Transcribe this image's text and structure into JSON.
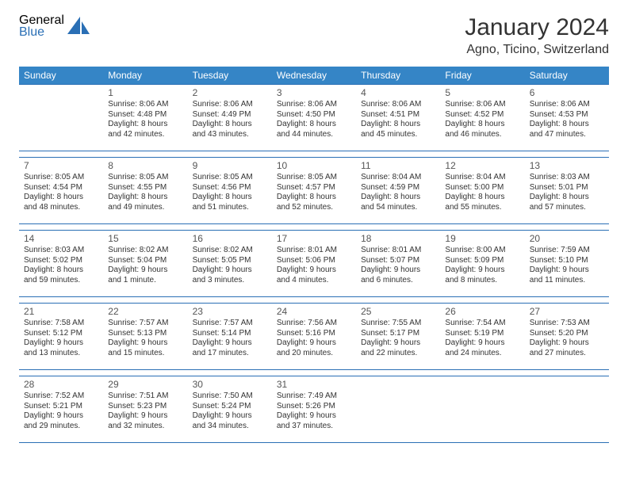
{
  "brand": {
    "top": "General",
    "bottom": "Blue"
  },
  "title": "January 2024",
  "location": "Agno, Ticino, Switzerland",
  "colors": {
    "header_bg": "#3585c6",
    "header_fg": "#ffffff",
    "rule": "#2a6fb5",
    "text": "#333333",
    "logo_gray": "#5a5a5a",
    "logo_blue": "#2a6fb5",
    "page_bg": "#ffffff"
  },
  "day_headers": [
    "Sunday",
    "Monday",
    "Tuesday",
    "Wednesday",
    "Thursday",
    "Friday",
    "Saturday"
  ],
  "weeks": [
    [
      null,
      {
        "n": "1",
        "sunrise": "Sunrise: 8:06 AM",
        "sunset": "Sunset: 4:48 PM",
        "day1": "Daylight: 8 hours",
        "day2": "and 42 minutes."
      },
      {
        "n": "2",
        "sunrise": "Sunrise: 8:06 AM",
        "sunset": "Sunset: 4:49 PM",
        "day1": "Daylight: 8 hours",
        "day2": "and 43 minutes."
      },
      {
        "n": "3",
        "sunrise": "Sunrise: 8:06 AM",
        "sunset": "Sunset: 4:50 PM",
        "day1": "Daylight: 8 hours",
        "day2": "and 44 minutes."
      },
      {
        "n": "4",
        "sunrise": "Sunrise: 8:06 AM",
        "sunset": "Sunset: 4:51 PM",
        "day1": "Daylight: 8 hours",
        "day2": "and 45 minutes."
      },
      {
        "n": "5",
        "sunrise": "Sunrise: 8:06 AM",
        "sunset": "Sunset: 4:52 PM",
        "day1": "Daylight: 8 hours",
        "day2": "and 46 minutes."
      },
      {
        "n": "6",
        "sunrise": "Sunrise: 8:06 AM",
        "sunset": "Sunset: 4:53 PM",
        "day1": "Daylight: 8 hours",
        "day2": "and 47 minutes."
      }
    ],
    [
      {
        "n": "7",
        "sunrise": "Sunrise: 8:05 AM",
        "sunset": "Sunset: 4:54 PM",
        "day1": "Daylight: 8 hours",
        "day2": "and 48 minutes."
      },
      {
        "n": "8",
        "sunrise": "Sunrise: 8:05 AM",
        "sunset": "Sunset: 4:55 PM",
        "day1": "Daylight: 8 hours",
        "day2": "and 49 minutes."
      },
      {
        "n": "9",
        "sunrise": "Sunrise: 8:05 AM",
        "sunset": "Sunset: 4:56 PM",
        "day1": "Daylight: 8 hours",
        "day2": "and 51 minutes."
      },
      {
        "n": "10",
        "sunrise": "Sunrise: 8:05 AM",
        "sunset": "Sunset: 4:57 PM",
        "day1": "Daylight: 8 hours",
        "day2": "and 52 minutes."
      },
      {
        "n": "11",
        "sunrise": "Sunrise: 8:04 AM",
        "sunset": "Sunset: 4:59 PM",
        "day1": "Daylight: 8 hours",
        "day2": "and 54 minutes."
      },
      {
        "n": "12",
        "sunrise": "Sunrise: 8:04 AM",
        "sunset": "Sunset: 5:00 PM",
        "day1": "Daylight: 8 hours",
        "day2": "and 55 minutes."
      },
      {
        "n": "13",
        "sunrise": "Sunrise: 8:03 AM",
        "sunset": "Sunset: 5:01 PM",
        "day1": "Daylight: 8 hours",
        "day2": "and 57 minutes."
      }
    ],
    [
      {
        "n": "14",
        "sunrise": "Sunrise: 8:03 AM",
        "sunset": "Sunset: 5:02 PM",
        "day1": "Daylight: 8 hours",
        "day2": "and 59 minutes."
      },
      {
        "n": "15",
        "sunrise": "Sunrise: 8:02 AM",
        "sunset": "Sunset: 5:04 PM",
        "day1": "Daylight: 9 hours",
        "day2": "and 1 minute."
      },
      {
        "n": "16",
        "sunrise": "Sunrise: 8:02 AM",
        "sunset": "Sunset: 5:05 PM",
        "day1": "Daylight: 9 hours",
        "day2": "and 3 minutes."
      },
      {
        "n": "17",
        "sunrise": "Sunrise: 8:01 AM",
        "sunset": "Sunset: 5:06 PM",
        "day1": "Daylight: 9 hours",
        "day2": "and 4 minutes."
      },
      {
        "n": "18",
        "sunrise": "Sunrise: 8:01 AM",
        "sunset": "Sunset: 5:07 PM",
        "day1": "Daylight: 9 hours",
        "day2": "and 6 minutes."
      },
      {
        "n": "19",
        "sunrise": "Sunrise: 8:00 AM",
        "sunset": "Sunset: 5:09 PM",
        "day1": "Daylight: 9 hours",
        "day2": "and 8 minutes."
      },
      {
        "n": "20",
        "sunrise": "Sunrise: 7:59 AM",
        "sunset": "Sunset: 5:10 PM",
        "day1": "Daylight: 9 hours",
        "day2": "and 11 minutes."
      }
    ],
    [
      {
        "n": "21",
        "sunrise": "Sunrise: 7:58 AM",
        "sunset": "Sunset: 5:12 PM",
        "day1": "Daylight: 9 hours",
        "day2": "and 13 minutes."
      },
      {
        "n": "22",
        "sunrise": "Sunrise: 7:57 AM",
        "sunset": "Sunset: 5:13 PM",
        "day1": "Daylight: 9 hours",
        "day2": "and 15 minutes."
      },
      {
        "n": "23",
        "sunrise": "Sunrise: 7:57 AM",
        "sunset": "Sunset: 5:14 PM",
        "day1": "Daylight: 9 hours",
        "day2": "and 17 minutes."
      },
      {
        "n": "24",
        "sunrise": "Sunrise: 7:56 AM",
        "sunset": "Sunset: 5:16 PM",
        "day1": "Daylight: 9 hours",
        "day2": "and 20 minutes."
      },
      {
        "n": "25",
        "sunrise": "Sunrise: 7:55 AM",
        "sunset": "Sunset: 5:17 PM",
        "day1": "Daylight: 9 hours",
        "day2": "and 22 minutes."
      },
      {
        "n": "26",
        "sunrise": "Sunrise: 7:54 AM",
        "sunset": "Sunset: 5:19 PM",
        "day1": "Daylight: 9 hours",
        "day2": "and 24 minutes."
      },
      {
        "n": "27",
        "sunrise": "Sunrise: 7:53 AM",
        "sunset": "Sunset: 5:20 PM",
        "day1": "Daylight: 9 hours",
        "day2": "and 27 minutes."
      }
    ],
    [
      {
        "n": "28",
        "sunrise": "Sunrise: 7:52 AM",
        "sunset": "Sunset: 5:21 PM",
        "day1": "Daylight: 9 hours",
        "day2": "and 29 minutes."
      },
      {
        "n": "29",
        "sunrise": "Sunrise: 7:51 AM",
        "sunset": "Sunset: 5:23 PM",
        "day1": "Daylight: 9 hours",
        "day2": "and 32 minutes."
      },
      {
        "n": "30",
        "sunrise": "Sunrise: 7:50 AM",
        "sunset": "Sunset: 5:24 PM",
        "day1": "Daylight: 9 hours",
        "day2": "and 34 minutes."
      },
      {
        "n": "31",
        "sunrise": "Sunrise: 7:49 AM",
        "sunset": "Sunset: 5:26 PM",
        "day1": "Daylight: 9 hours",
        "day2": "and 37 minutes."
      },
      null,
      null,
      null
    ]
  ]
}
